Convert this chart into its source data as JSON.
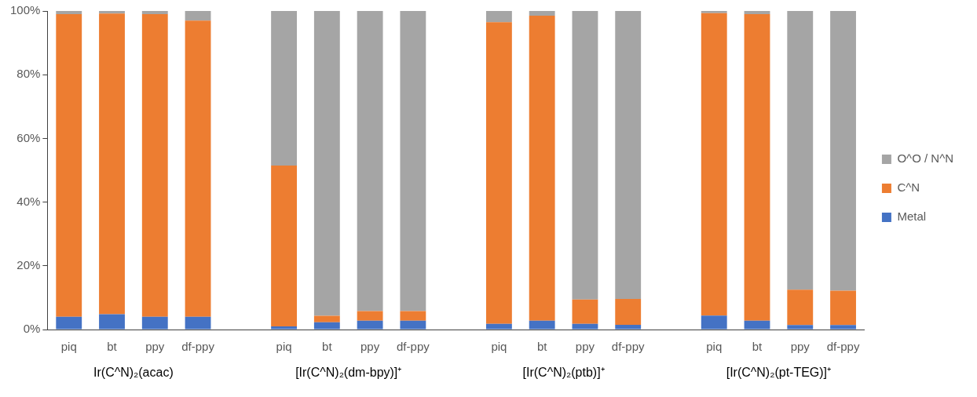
{
  "chart_data": {
    "type": "bar",
    "stacked": true,
    "categories": [
      "piq",
      "bt",
      "ppy",
      "df-ppy",
      null,
      "piq",
      "bt",
      "ppy",
      "df-ppy",
      null,
      "piq",
      "bt",
      "ppy",
      "df-ppy",
      null,
      "piq",
      "bt",
      "ppy",
      "df-ppy"
    ],
    "series": [
      {
        "name": "Metal",
        "color": "#4472c4",
        "values": [
          4,
          4.8,
          4,
          4,
          null,
          1,
          2.3,
          2.8,
          2.8,
          null,
          1.8,
          2.8,
          1.8,
          1.5,
          null,
          4.4,
          2.8,
          1.4,
          1.4
        ]
      },
      {
        "name": "C^N",
        "color": "#ed7d31",
        "values": [
          95,
          94.4,
          95,
          93,
          null,
          50.5,
          2,
          3,
          3,
          null,
          94.7,
          95.7,
          7.6,
          8.1,
          null,
          94.9,
          96.2,
          11.1,
          10.8
        ]
      },
      {
        "name": "O^O / N^N",
        "color": "#a5a5a5",
        "values": [
          1,
          0.8,
          1,
          3,
          null,
          48.5,
          95.7,
          94.2,
          94.2,
          null,
          3.5,
          1.5,
          90.6,
          90.4,
          null,
          0.7,
          1,
          87.5,
          87.8
        ]
      }
    ],
    "ylim": [
      0,
      100
    ],
    "yticks": [
      {
        "value": 0,
        "label": "0%"
      },
      {
        "value": 20,
        "label": "20%"
      },
      {
        "value": 40,
        "label": "40%"
      },
      {
        "value": 60,
        "label": "60%"
      },
      {
        "value": 80,
        "label": "80%"
      },
      {
        "value": 100,
        "label": "100%"
      }
    ],
    "annotations": [
      "Ir(C^N)₂(acac)",
      "[Ir(C^N)₂(dm-bpy)]⁺",
      "[Ir(C^N)₂(ptb)]⁺",
      "[Ir(C^N)₂(pt-TEG)]⁺"
    ],
    "grid": false,
    "legend": "right"
  }
}
